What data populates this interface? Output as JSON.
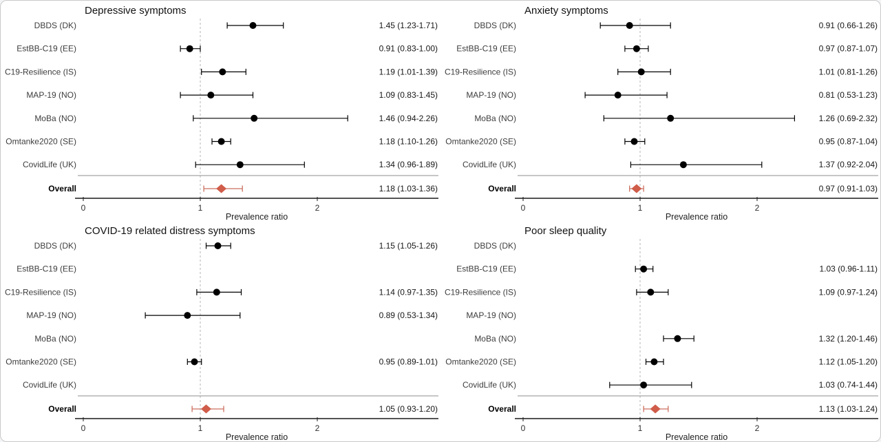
{
  "figure": {
    "xlabel": "Prevalence ratio",
    "overall_label": "Overall",
    "colors": {
      "study_marker": "#000000",
      "overall_diamond": "#d05c4a",
      "overall_whisker": "#cb6e5e",
      "axis_line": "#1a1a1a",
      "reference_line": "#b4b4b4",
      "separator_line": "#8c8c8c",
      "study_label": "#3d3d3d",
      "estimate_text": "#161616",
      "title_text": "#111111"
    }
  },
  "chart_data": [
    {
      "type": "forest",
      "id": "depressive-symptoms",
      "title": "Depressive symptoms",
      "xlabel": "Prevalence ratio",
      "xlim": [
        0,
        3.05
      ],
      "x_ticks": [
        0,
        1,
        2
      ],
      "reference_line": 1,
      "grid": false,
      "rows": [
        {
          "label": "DBDS (DK)",
          "est": 1.45,
          "lo": 1.23,
          "hi": 1.71,
          "text": "1.45 (1.23-1.71)"
        },
        {
          "label": "EstBB-C19 (EE)",
          "est": 0.91,
          "lo": 0.83,
          "hi": 1.0,
          "text": "0.91 (0.83-1.00)"
        },
        {
          "label": "C19-Resilience (IS)",
          "est": 1.19,
          "lo": 1.01,
          "hi": 1.39,
          "text": "1.19 (1.01-1.39)"
        },
        {
          "label": "MAP-19 (NO)",
          "est": 1.09,
          "lo": 0.83,
          "hi": 1.45,
          "text": "1.09 (0.83-1.45)"
        },
        {
          "label": "MoBa (NO)",
          "est": 1.46,
          "lo": 0.94,
          "hi": 2.26,
          "text": "1.46 (0.94-2.26)"
        },
        {
          "label": "Omtanke2020 (SE)",
          "est": 1.18,
          "lo": 1.1,
          "hi": 1.26,
          "text": "1.18 (1.10-1.26)"
        },
        {
          "label": "CovidLife (UK)",
          "est": 1.34,
          "lo": 0.96,
          "hi": 1.89,
          "text": "1.34 (0.96-1.89)"
        }
      ],
      "overall": {
        "label": "Overall",
        "est": 1.18,
        "lo": 1.03,
        "hi": 1.36,
        "text": "1.18 (1.03-1.36)"
      }
    },
    {
      "type": "forest",
      "id": "anxiety-symptoms",
      "title": "Anxiety symptoms",
      "xlabel": "Prevalence ratio",
      "xlim": [
        0,
        3.05
      ],
      "x_ticks": [
        0,
        1,
        2
      ],
      "reference_line": 1,
      "grid": false,
      "rows": [
        {
          "label": "DBDS (DK)",
          "est": 0.91,
          "lo": 0.66,
          "hi": 1.26,
          "text": "0.91 (0.66-1.26)"
        },
        {
          "label": "EstBB-C19 (EE)",
          "est": 0.97,
          "lo": 0.87,
          "hi": 1.07,
          "text": "0.97 (0.87-1.07)"
        },
        {
          "label": "C19-Resilience (IS)",
          "est": 1.01,
          "lo": 0.81,
          "hi": 1.26,
          "text": "1.01 (0.81-1.26)"
        },
        {
          "label": "MAP-19 (NO)",
          "est": 0.81,
          "lo": 0.53,
          "hi": 1.23,
          "text": "0.81 (0.53-1.23)"
        },
        {
          "label": "MoBa (NO)",
          "est": 1.26,
          "lo": 0.69,
          "hi": 2.32,
          "text": "1.26 (0.69-2.32)"
        },
        {
          "label": "Omtanke2020 (SE)",
          "est": 0.95,
          "lo": 0.87,
          "hi": 1.04,
          "text": "0.95 (0.87-1.04)"
        },
        {
          "label": "CovidLife (UK)",
          "est": 1.37,
          "lo": 0.92,
          "hi": 2.04,
          "text": "1.37 (0.92-2.04)"
        }
      ],
      "overall": {
        "label": "Overall",
        "est": 0.97,
        "lo": 0.91,
        "hi": 1.03,
        "text": "0.97 (0.91-1.03)"
      }
    },
    {
      "type": "forest",
      "id": "covid-distress-symptoms",
      "title": "COVID-19 related distress symptoms",
      "xlabel": "Prevalence ratio",
      "xlim": [
        0,
        3.05
      ],
      "x_ticks": [
        0,
        1,
        2
      ],
      "reference_line": 1,
      "grid": false,
      "rows": [
        {
          "label": "DBDS (DK)",
          "est": 1.15,
          "lo": 1.05,
          "hi": 1.26,
          "text": "1.15 (1.05-1.26)"
        },
        {
          "label": "EstBB-C19 (EE)",
          "est": null,
          "lo": null,
          "hi": null,
          "text": ""
        },
        {
          "label": "C19-Resilience (IS)",
          "est": 1.14,
          "lo": 0.97,
          "hi": 1.35,
          "text": "1.14 (0.97-1.35)"
        },
        {
          "label": "MAP-19 (NO)",
          "est": 0.89,
          "lo": 0.53,
          "hi": 1.34,
          "text": "0.89 (0.53-1.34)"
        },
        {
          "label": "MoBa (NO)",
          "est": null,
          "lo": null,
          "hi": null,
          "text": ""
        },
        {
          "label": "Omtanke2020 (SE)",
          "est": 0.95,
          "lo": 0.89,
          "hi": 1.01,
          "text": "0.95 (0.89-1.01)"
        },
        {
          "label": "CovidLife (UK)",
          "est": null,
          "lo": null,
          "hi": null,
          "text": ""
        }
      ],
      "overall": {
        "label": "Overall",
        "est": 1.05,
        "lo": 0.93,
        "hi": 1.2,
        "text": "1.05 (0.93-1.20)"
      }
    },
    {
      "type": "forest",
      "id": "poor-sleep-quality",
      "title": "Poor sleep quality",
      "xlabel": "Prevalence ratio",
      "xlim": [
        0,
        3.05
      ],
      "x_ticks": [
        0,
        1,
        2
      ],
      "reference_line": 1,
      "grid": false,
      "rows": [
        {
          "label": "DBDS (DK)",
          "est": null,
          "lo": null,
          "hi": null,
          "text": ""
        },
        {
          "label": "EstBB-C19 (EE)",
          "est": 1.03,
          "lo": 0.96,
          "hi": 1.11,
          "text": "1.03 (0.96-1.11)"
        },
        {
          "label": "C19-Resilience (IS)",
          "est": 1.09,
          "lo": 0.97,
          "hi": 1.24,
          "text": "1.09 (0.97-1.24)"
        },
        {
          "label": "MAP-19 (NO)",
          "est": null,
          "lo": null,
          "hi": null,
          "text": ""
        },
        {
          "label": "MoBa (NO)",
          "est": 1.32,
          "lo": 1.2,
          "hi": 1.46,
          "text": "1.32 (1.20-1.46)"
        },
        {
          "label": "Omtanke2020 (SE)",
          "est": 1.12,
          "lo": 1.05,
          "hi": 1.2,
          "text": "1.12 (1.05-1.20)"
        },
        {
          "label": "CovidLife (UK)",
          "est": 1.03,
          "lo": 0.74,
          "hi": 1.44,
          "text": "1.03 (0.74-1.44)"
        }
      ],
      "overall": {
        "label": "Overall",
        "est": 1.13,
        "lo": 1.03,
        "hi": 1.24,
        "text": "1.13 (1.03-1.24)"
      }
    }
  ]
}
